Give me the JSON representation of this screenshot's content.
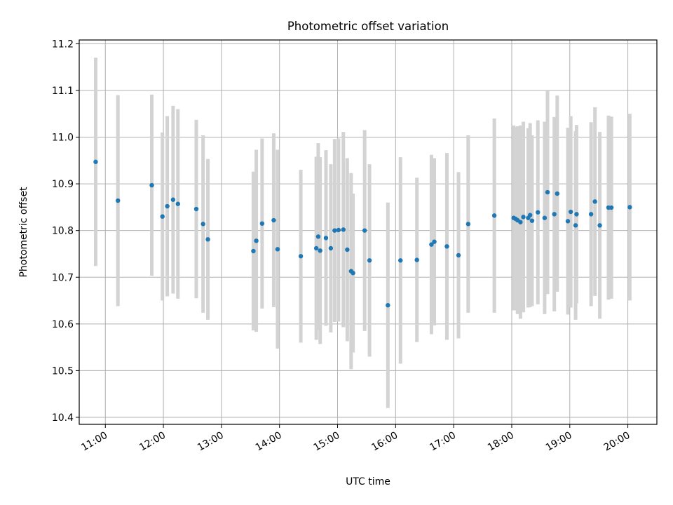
{
  "chart_data": {
    "type": "scatter",
    "title": "Photometric offset variation",
    "xlabel": "UTC time",
    "ylabel": "Photometric offset",
    "x_ticks": [
      "11:00",
      "12:00",
      "13:00",
      "14:00",
      "15:00",
      "16:00",
      "17:00",
      "18:00",
      "19:00",
      "20:00"
    ],
    "y_ticks": [
      10.4,
      10.5,
      10.6,
      10.7,
      10.8,
      10.9,
      11.0,
      11.1,
      11.2
    ],
    "y_tick_labels": [
      "10.4",
      "10.5",
      "10.6",
      "10.7",
      "10.8",
      "10.9",
      "11.0",
      "11.1",
      "11.2"
    ],
    "xlim": [
      "10:33",
      "20:30"
    ],
    "ylim": [
      10.385,
      11.208
    ],
    "grid": true,
    "legend": "none",
    "colors": {
      "point": "#1f77b4",
      "errorbar": "#d3d3d3",
      "grid": "#b0b0b0"
    },
    "series": [
      {
        "x": [
          "10:50",
          "11:13",
          "11:48",
          "11:59",
          "12:04",
          "12:10",
          "12:15",
          "12:34",
          "12:41",
          "12:46",
          "13:33",
          "13:36",
          "13:42",
          "13:54",
          "13:58",
          "14:22",
          "14:38",
          "14:40",
          "14:42",
          "14:48",
          "14:53",
          "14:57",
          "15:01",
          "15:06",
          "15:10",
          "15:14",
          "15:16",
          "15:28",
          "15:33",
          "15:52",
          "16:05",
          "16:22",
          "16:37",
          "16:40",
          "16:53",
          "17:05",
          "17:15",
          "17:42",
          "18:02",
          "18:04",
          "18:06",
          "18:09",
          "18:12",
          "18:17",
          "18:19",
          "18:21",
          "18:27",
          "18:34",
          "18:37",
          "18:44",
          "18:47",
          "18:58",
          "19:01",
          "19:06",
          "19:07",
          "19:22",
          "19:26",
          "19:31",
          "19:40",
          "19:43",
          "20:02"
        ],
        "y": [
          10.947,
          10.864,
          10.897,
          10.83,
          10.852,
          10.866,
          10.857,
          10.846,
          10.814,
          10.781,
          10.756,
          10.778,
          10.815,
          10.822,
          10.76,
          10.745,
          10.762,
          10.787,
          10.757,
          10.784,
          10.762,
          10.8,
          10.801,
          10.802,
          10.759,
          10.713,
          10.709,
          10.8,
          10.736,
          10.64,
          10.736,
          10.737,
          10.77,
          10.776,
          10.766,
          10.747,
          10.814,
          10.832,
          10.827,
          10.825,
          10.822,
          10.818,
          10.829,
          10.827,
          10.833,
          10.821,
          10.839,
          10.827,
          10.882,
          10.835,
          10.879,
          10.82,
          10.84,
          10.811,
          10.835,
          10.835,
          10.862,
          10.811,
          10.849,
          10.849,
          10.85
        ],
        "err": [
          0.223,
          0.226,
          0.194,
          0.18,
          0.193,
          0.201,
          0.203,
          0.191,
          0.19,
          0.172,
          0.17,
          0.195,
          0.182,
          0.186,
          0.213,
          0.185,
          0.196,
          0.2,
          0.2,
          0.188,
          0.18,
          0.196,
          0.196,
          0.209,
          0.196,
          0.21,
          0.17,
          0.215,
          0.206,
          0.22,
          0.221,
          0.176,
          0.192,
          0.179,
          0.2,
          0.178,
          0.19,
          0.208,
          0.198,
          0.196,
          0.201,
          0.207,
          0.204,
          0.192,
          0.197,
          0.183,
          0.197,
          0.206,
          0.218,
          0.208,
          0.21,
          0.2,
          0.205,
          0.202,
          0.191,
          0.197,
          0.202,
          0.2,
          0.197,
          0.195,
          0.2
        ]
      }
    ]
  }
}
